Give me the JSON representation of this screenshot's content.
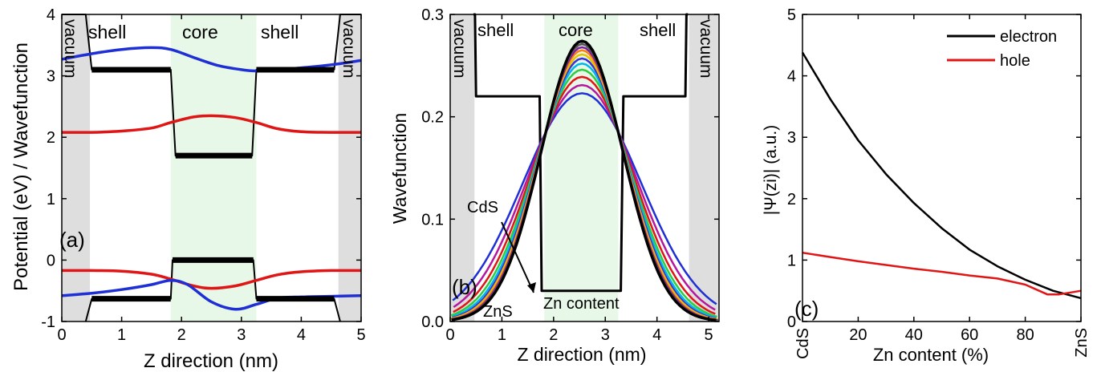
{
  "chart_data": [
    {
      "panel_label": "(a)",
      "type": "line",
      "xlabel": "Z direction (nm)",
      "ylabel": "Potential (eV) / Wavefunction",
      "xlim": [
        0,
        5
      ],
      "ylim": [
        -1,
        4
      ],
      "xticks": [
        "0",
        "1",
        "2",
        "3",
        "4",
        "5"
      ],
      "yticks": [
        "-1",
        "0",
        "1",
        "2",
        "3",
        "4"
      ],
      "region_labels": {
        "vacuum_left": "vacuum",
        "shell_left": "shell",
        "core": "core",
        "shell_right": "shell",
        "vacuum_right": "vacuum"
      },
      "regions": {
        "vacuum_left": [
          0,
          0.47
        ],
        "core": [
          1.82,
          3.25
        ],
        "vacuum_right": [
          4.62,
          5
        ]
      },
      "series": [
        {
          "color": "#000000",
          "x": [
            0,
            0.4,
            0.5,
            1.82,
            1.9,
            3.18,
            3.25,
            4.55,
            4.65,
            5
          ],
          "y": [
            4.0,
            4.0,
            3.1,
            3.1,
            1.7,
            1.7,
            3.1,
            3.1,
            4.0,
            4.0
          ]
        },
        {
          "color": "#000000",
          "x": [
            0.4,
            0.5,
            1.82,
            1.85,
            3.2,
            3.25,
            4.55,
            4.65
          ],
          "y": [
            -1.0,
            -0.63,
            -0.63,
            0.0,
            0.0,
            -0.63,
            -0.63,
            -1.0
          ]
        },
        {
          "color": "#1f2fd6",
          "x": [
            0,
            0.5,
            1.0,
            1.5,
            1.82,
            2.2,
            2.6,
            3.0,
            3.25,
            3.6,
            4.0,
            4.5,
            5
          ],
          "y": [
            3.27,
            3.36,
            3.43,
            3.46,
            3.43,
            3.3,
            3.17,
            3.1,
            3.08,
            3.1,
            3.13,
            3.18,
            3.25
          ]
        },
        {
          "color": "#e01515",
          "x": [
            0,
            0.5,
            1.0,
            1.5,
            1.82,
            2.2,
            2.5,
            2.9,
            3.25,
            3.6,
            4.0,
            4.5,
            5
          ],
          "y": [
            2.08,
            2.08,
            2.1,
            2.15,
            2.24,
            2.33,
            2.35,
            2.32,
            2.24,
            2.14,
            2.09,
            2.08,
            2.08
          ]
        },
        {
          "color": "#e01515",
          "x": [
            0,
            0.5,
            1.0,
            1.5,
            1.82,
            2.2,
            2.5,
            2.9,
            3.25,
            3.6,
            4.0,
            4.5,
            5
          ],
          "y": [
            -0.17,
            -0.17,
            -0.18,
            -0.23,
            -0.31,
            -0.42,
            -0.46,
            -0.42,
            -0.33,
            -0.24,
            -0.19,
            -0.17,
            -0.17
          ]
        },
        {
          "color": "#1f2fd6",
          "x": [
            0,
            0.5,
            1.0,
            1.5,
            1.82,
            2.1,
            2.5,
            2.9,
            3.25,
            3.6,
            4.0,
            4.5,
            5
          ],
          "y": [
            -0.58,
            -0.54,
            -0.48,
            -0.4,
            -0.33,
            -0.4,
            -0.68,
            -0.8,
            -0.72,
            -0.62,
            -0.6,
            -0.59,
            -0.58
          ]
        }
      ]
    },
    {
      "panel_label": "(b)",
      "type": "line",
      "xlabel": "Z direction (nm)",
      "ylabel": "Wavefunction",
      "xlim": [
        0,
        5.2
      ],
      "ylim": [
        0,
        0.3
      ],
      "xticks": [
        "0",
        "1",
        "2",
        "3",
        "4",
        "5"
      ],
      "yticks": [
        "0.0",
        "0.1",
        "0.2",
        "0.3"
      ],
      "region_labels": {
        "vacuum_left": "vacuum",
        "shell_left": "shell",
        "core": "core",
        "shell_right": "shell",
        "vacuum_right": "vacuum"
      },
      "regions": {
        "vacuum_left": [
          0,
          0.47
        ],
        "core": [
          1.82,
          3.25
        ],
        "vacuum_right": [
          4.62,
          5.2
        ]
      },
      "annotations": {
        "start": "CdS",
        "end": "ZnS",
        "arrow_label": "Zn content"
      },
      "potential": {
        "color": "#000000",
        "x": [
          0.45,
          0.48,
          0.5,
          1.73,
          1.77,
          1.82,
          3.25,
          3.3,
          3.35,
          4.55,
          4.57,
          4.6
        ],
        "y": [
          0.3,
          0.3,
          0.22,
          0.22,
          0.03,
          0.03,
          0.03,
          0.03,
          0.22,
          0.22,
          0.3,
          0.3
        ]
      },
      "wavefunctions": {
        "center": 2.55,
        "crossing_x": 1.85,
        "crossing_y": 0.185,
        "peaks": [
          0.223,
          0.231,
          0.239,
          0.246,
          0.252,
          0.257,
          0.261,
          0.265,
          0.268,
          0.271,
          0.274
        ],
        "colors": [
          "#1f2fd6",
          "#b5179e",
          "#e01515",
          "#2ecc40",
          "#00b7eb",
          "#3b2fd6",
          "#e6c300",
          "#ff7f0e",
          "#7b1fa2",
          "#555555",
          "#000000"
        ]
      }
    },
    {
      "panel_label": "(c)",
      "type": "line",
      "xlabel": "Zn content (%)",
      "ylabel": "|Ψ(zi)| (a.u.)",
      "xlim": [
        0,
        100
      ],
      "ylim": [
        0,
        5
      ],
      "xticks": [
        "CdS",
        "20",
        "40",
        "60",
        "80",
        "ZnS"
      ],
      "xtick_values": [
        0,
        20,
        40,
        60,
        80,
        100
      ],
      "yticks": [
        "0",
        "1",
        "2",
        "3",
        "4",
        "5"
      ],
      "legend_position": "top-right",
      "series": [
        {
          "name": "electron",
          "color": "#000000",
          "x": [
            0,
            10,
            20,
            30,
            40,
            50,
            60,
            70,
            80,
            90,
            100
          ],
          "y": [
            4.38,
            3.62,
            2.95,
            2.4,
            1.93,
            1.52,
            1.17,
            0.9,
            0.68,
            0.5,
            0.38
          ]
        },
        {
          "name": "hole",
          "color": "#e01515",
          "x": [
            0,
            10,
            20,
            30,
            40,
            50,
            60,
            70,
            80,
            88,
            92,
            100
          ],
          "y": [
            1.12,
            1.05,
            0.98,
            0.92,
            0.86,
            0.81,
            0.75,
            0.7,
            0.6,
            0.44,
            0.44,
            0.5
          ]
        }
      ]
    }
  ]
}
